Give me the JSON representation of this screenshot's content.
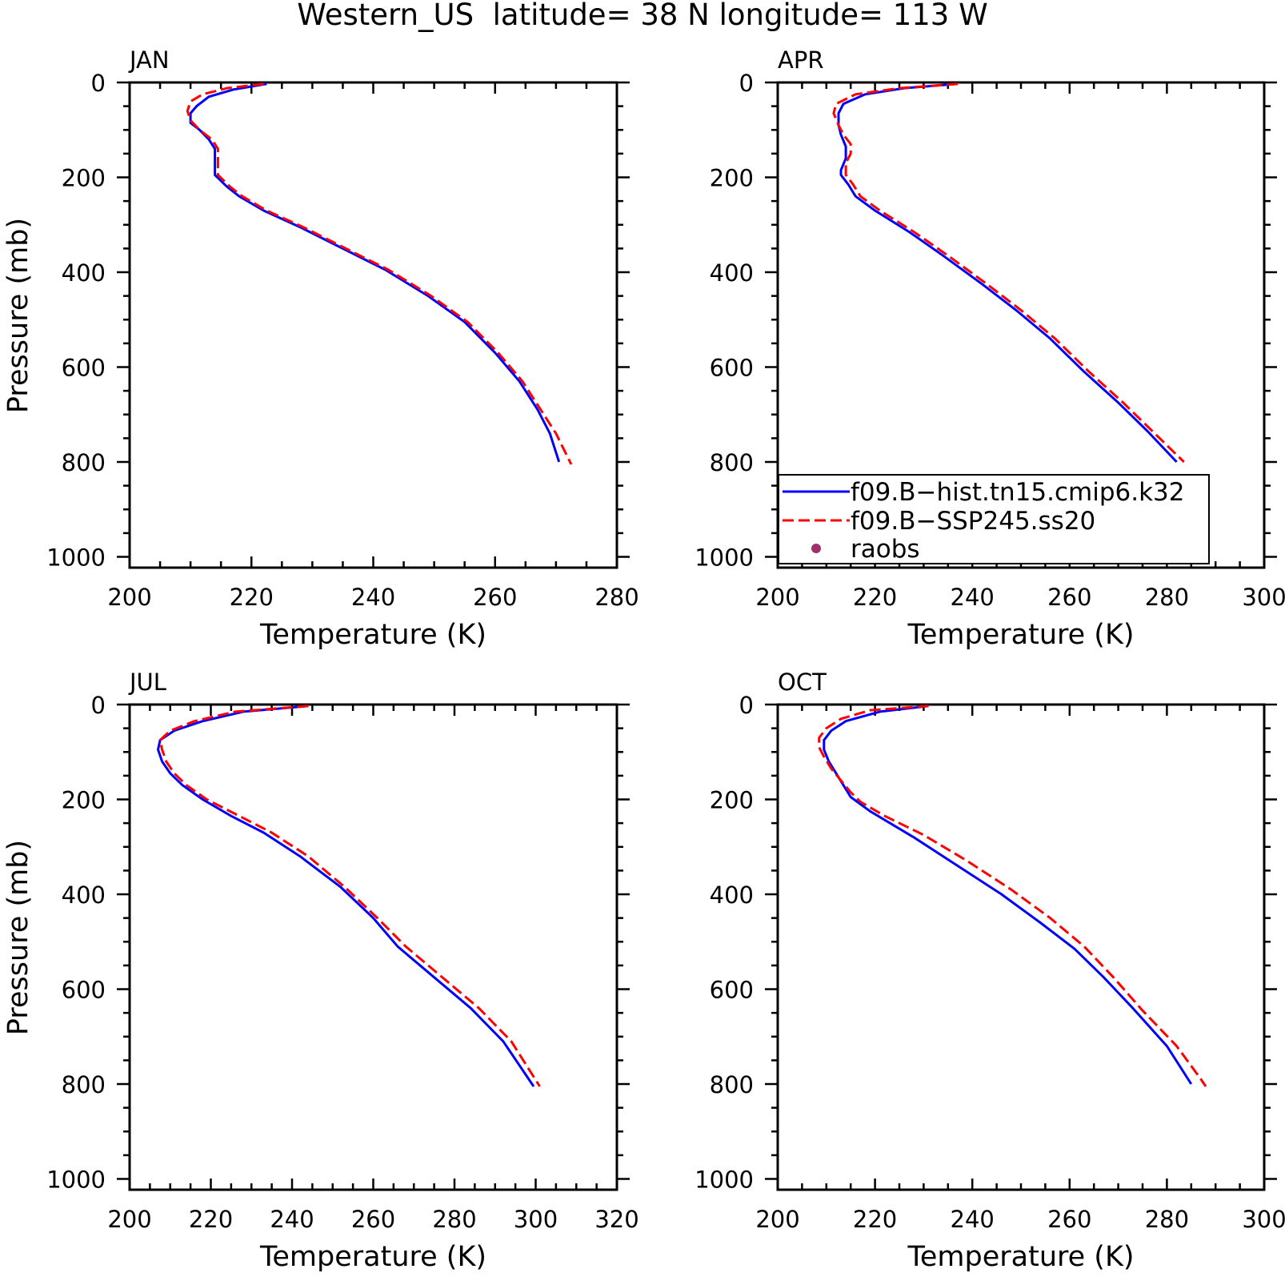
{
  "title": "Western_US  latitude= 38 N longitude= 113 W",
  "legend": {
    "items": [
      {
        "label": "f09.B−hist.tn15.cmip6.k32",
        "style": "solid",
        "color": "#0000ff"
      },
      {
        "label": "f09.B−SSP245.ss20",
        "style": "dashed",
        "color": "#ff0000"
      },
      {
        "label": "raobs",
        "style": "dot",
        "color": "#a0306a"
      }
    ]
  },
  "chart_data": [
    {
      "type": "line",
      "panel_label": "JAN",
      "xlabel": "Temperature (K)",
      "ylabel": "Pressure (mb)",
      "xlim": [
        200,
        280
      ],
      "ylim": [
        1020,
        0
      ],
      "xticks": [
        200,
        220,
        240,
        260,
        280
      ],
      "yticks": [
        0,
        200,
        400,
        600,
        800,
        1000
      ],
      "series": [
        {
          "name": "f09.B−hist.tn15.cmip6.k32",
          "color": "#0000ff",
          "dash": false,
          "points": [
            [
              222.5,
              3
            ],
            [
              217,
              15
            ],
            [
              213,
              30
            ],
            [
              211,
              50
            ],
            [
              210,
              65
            ],
            [
              210,
              85
            ],
            [
              211.5,
              100
            ],
            [
              213,
              120
            ],
            [
              214,
              140
            ],
            [
              214,
              170
            ],
            [
              214,
              195
            ],
            [
              216,
              220
            ],
            [
              218,
              240
            ],
            [
              222,
              270
            ],
            [
              228,
              305
            ],
            [
              235,
              350
            ],
            [
              242,
              395
            ],
            [
              249,
              450
            ],
            [
              255,
              505
            ],
            [
              260,
              570
            ],
            [
              264,
              630
            ],
            [
              267,
              690
            ],
            [
              269,
              740
            ],
            [
              270.5,
              800
            ]
          ]
        },
        {
          "name": "f09.B−SSP245.ss20",
          "color": "#ff0000",
          "dash": true,
          "points": [
            [
              222,
              3
            ],
            [
              216,
              12
            ],
            [
              212,
              25
            ],
            [
              210,
              40
            ],
            [
              209.5,
              60
            ],
            [
              210,
              80
            ],
            [
              211.5,
              100
            ],
            [
              213.5,
              120
            ],
            [
              214.5,
              140
            ],
            [
              214.5,
              170
            ],
            [
              214.5,
              195
            ],
            [
              216.5,
              220
            ],
            [
              218.5,
              240
            ],
            [
              222.5,
              270
            ],
            [
              228.5,
              305
            ],
            [
              235.5,
              350
            ],
            [
              242.5,
              395
            ],
            [
              249.5,
              450
            ],
            [
              255.5,
              505
            ],
            [
              260.5,
              570
            ],
            [
              264.5,
              630
            ],
            [
              267.5,
              690
            ],
            [
              270,
              740
            ],
            [
              272.5,
              805
            ]
          ]
        }
      ]
    },
    {
      "type": "line",
      "panel_label": "APR",
      "xlabel": "Temperature (K)",
      "ylabel": "",
      "xlim": [
        200,
        300
      ],
      "ylim": [
        1020,
        0
      ],
      "xticks": [
        200,
        220,
        240,
        260,
        280,
        300
      ],
      "yticks": [
        0,
        200,
        400,
        600,
        800,
        1000
      ],
      "series": [
        {
          "name": "f09.B−hist.tn15.cmip6.k32",
          "color": "#0000ff",
          "dash": false,
          "points": [
            [
              237,
              3
            ],
            [
              226,
              12
            ],
            [
              218,
              25
            ],
            [
              213.5,
              45
            ],
            [
              212.5,
              65
            ],
            [
              212.5,
              90
            ],
            [
              213,
              110
            ],
            [
              214,
              135
            ],
            [
              214,
              160
            ],
            [
              213,
              185
            ],
            [
              213,
              195
            ],
            [
              214.5,
              215
            ],
            [
              216,
              240
            ],
            [
              220,
              270
            ],
            [
              227,
              315
            ],
            [
              234,
              365
            ],
            [
              242,
              425
            ],
            [
              249,
              480
            ],
            [
              256,
              540
            ],
            [
              263,
              610
            ],
            [
              270,
              675
            ],
            [
              276,
              735
            ],
            [
              282,
              800
            ]
          ]
        },
        {
          "name": "f09.B−SSP245.ss20",
          "color": "#ff0000",
          "dash": true,
          "points": [
            [
              237,
              3
            ],
            [
              225,
              12
            ],
            [
              216,
              25
            ],
            [
              212,
              45
            ],
            [
              211.5,
              65
            ],
            [
              212.5,
              90
            ],
            [
              213.5,
              110
            ],
            [
              215,
              130
            ],
            [
              215,
              150
            ],
            [
              214,
              170
            ],
            [
              214,
              195
            ],
            [
              215.5,
              215
            ],
            [
              217,
              240
            ],
            [
              221,
              270
            ],
            [
              228,
              315
            ],
            [
              235,
              365
            ],
            [
              243,
              425
            ],
            [
              250,
              480
            ],
            [
              257,
              540
            ],
            [
              264,
              610
            ],
            [
              271,
              675
            ],
            [
              277,
              735
            ],
            [
              283.5,
              800
            ]
          ]
        }
      ]
    },
    {
      "type": "line",
      "panel_label": "JUL",
      "xlabel": "Temperature (K)",
      "ylabel": "Pressure (mb)",
      "xlim": [
        200,
        320
      ],
      "ylim": [
        1020,
        0
      ],
      "xticks": [
        200,
        220,
        240,
        260,
        280,
        300,
        320
      ],
      "yticks": [
        0,
        200,
        400,
        600,
        800,
        1000
      ],
      "series": [
        {
          "name": "f09.B−hist.tn15.cmip6.k32",
          "color": "#0000ff",
          "dash": false,
          "points": [
            [
              244,
              3
            ],
            [
              228,
              15
            ],
            [
              218,
              35
            ],
            [
              211,
              55
            ],
            [
              207.5,
              75
            ],
            [
              207,
              95
            ],
            [
              208,
              120
            ],
            [
              210,
              145
            ],
            [
              213,
              170
            ],
            [
              218,
              200
            ],
            [
              225,
              235
            ],
            [
              233,
              270
            ],
            [
              242,
              320
            ],
            [
              252,
              385
            ],
            [
              260,
              450
            ],
            [
              266,
              510
            ],
            [
              275,
              575
            ],
            [
              284,
              640
            ],
            [
              292,
              710
            ],
            [
              299.5,
              805
            ]
          ]
        },
        {
          "name": "f09.B−SSP245.ss20",
          "color": "#ff0000",
          "dash": true,
          "points": [
            [
              244,
              3
            ],
            [
              226,
              15
            ],
            [
              216,
              35
            ],
            [
              210,
              55
            ],
            [
              207.5,
              75
            ],
            [
              208,
              95
            ],
            [
              209,
              120
            ],
            [
              211,
              145
            ],
            [
              214,
              170
            ],
            [
              219,
              200
            ],
            [
              227,
              235
            ],
            [
              235,
              270
            ],
            [
              244,
              320
            ],
            [
              253,
              385
            ],
            [
              261,
              450
            ],
            [
              268,
              510
            ],
            [
              277,
              575
            ],
            [
              286,
              640
            ],
            [
              294,
              710
            ],
            [
              301,
              805
            ]
          ]
        }
      ]
    },
    {
      "type": "line",
      "panel_label": "OCT",
      "xlabel": "Temperature (K)",
      "ylabel": "",
      "xlim": [
        200,
        300
      ],
      "ylim": [
        1020,
        0
      ],
      "xticks": [
        200,
        220,
        240,
        260,
        280,
        300
      ],
      "yticks": [
        0,
        200,
        400,
        600,
        800,
        1000
      ],
      "series": [
        {
          "name": "f09.B−hist.tn15.cmip6.k32",
          "color": "#0000ff",
          "dash": false,
          "points": [
            [
              231,
              3
            ],
            [
              221,
              15
            ],
            [
              214,
              35
            ],
            [
              211,
              55
            ],
            [
              209.5,
              75
            ],
            [
              209.5,
              95
            ],
            [
              210.5,
              120
            ],
            [
              212,
              145
            ],
            [
              213.5,
              170
            ],
            [
              215,
              195
            ],
            [
              219,
              225
            ],
            [
              228,
              280
            ],
            [
              237,
              340
            ],
            [
              246,
              400
            ],
            [
              254,
              460
            ],
            [
              261,
              515
            ],
            [
              267,
              575
            ],
            [
              273,
              640
            ],
            [
              280,
              720
            ],
            [
              285,
              800
            ]
          ]
        },
        {
          "name": "f09.B−SSP245.ss20",
          "color": "#ff0000",
          "dash": true,
          "points": [
            [
              231,
              3
            ],
            [
              219,
              12
            ],
            [
              213,
              30
            ],
            [
              210,
              50
            ],
            [
              208.5,
              70
            ],
            [
              208.5,
              90
            ],
            [
              209.5,
              110
            ],
            [
              211,
              135
            ],
            [
              213,
              160
            ],
            [
              215,
              185
            ],
            [
              217,
              205
            ],
            [
              222,
              235
            ],
            [
              230,
              275
            ],
            [
              239,
              330
            ],
            [
              248,
              390
            ],
            [
              256,
              450
            ],
            [
              263,
              510
            ],
            [
              269,
              575
            ],
            [
              275,
              645
            ],
            [
              282,
              720
            ],
            [
              287,
              790
            ],
            [
              288,
              805
            ]
          ]
        }
      ]
    }
  ]
}
